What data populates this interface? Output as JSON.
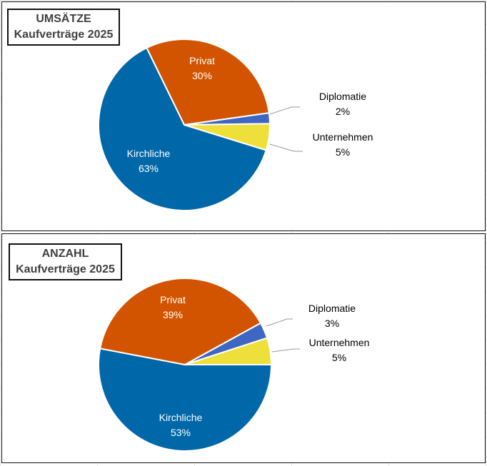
{
  "colors": {
    "Kirchliche": "#0068A8",
    "Privat": "#D35400",
    "Diplomatie": "#3F66C0",
    "Unternehmen": "#EEDF3A"
  },
  "chart_data": [
    {
      "type": "pie",
      "title_line1": "UMSÄTZE",
      "title_line2": "Kaufverträge 2025",
      "slices": [
        {
          "label": "Privat",
          "value": 30,
          "text": "30%"
        },
        {
          "label": "Diplomatie",
          "value": 2,
          "text": "2%"
        },
        {
          "label": "Unternehmen",
          "value": 5,
          "text": "5%"
        },
        {
          "label": "Kirchliche",
          "value": 63,
          "text": "63%"
        }
      ],
      "start_angle_deg": -26
    },
    {
      "type": "pie",
      "title_line1": "ANZAHL",
      "title_line2": "Kaufverträge 2025",
      "slices": [
        {
          "label": "Kirchliche",
          "value": 53,
          "text": "53%"
        },
        {
          "label": "Privat",
          "value": 39,
          "text": "39%"
        },
        {
          "label": "Diplomatie",
          "value": 3,
          "text": "3%"
        },
        {
          "label": "Unternehmen",
          "value": 5,
          "text": "5%"
        }
      ],
      "start_angle_deg": 90
    }
  ]
}
